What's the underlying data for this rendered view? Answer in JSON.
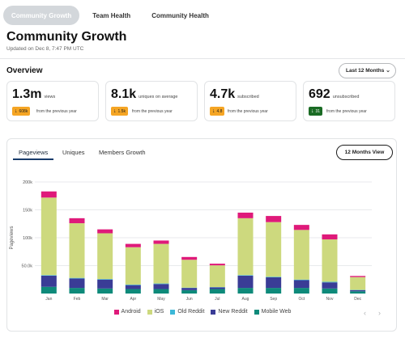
{
  "top_tabs": [
    {
      "label": "Community Growth",
      "active": true
    },
    {
      "label": "Team Health",
      "active": false
    },
    {
      "label": "Community Health",
      "active": false
    }
  ],
  "header": {
    "title": "Community Growth",
    "subtitle": "Updated on Dec 8, 7:47 PM UTC"
  },
  "overview": {
    "title": "Overview",
    "range_label": "Last 12 Months",
    "range_icon": "chevron-down-icon"
  },
  "stats": [
    {
      "value": "1.3m",
      "unit": "views",
      "delta": "608k",
      "direction": "down",
      "badge_color": "#f5a524",
      "compare": "from the previous year"
    },
    {
      "value": "8.1k",
      "unit": "uniques on average",
      "delta": "1.5k",
      "direction": "down",
      "badge_color": "#f5a524",
      "compare": "from the previous year"
    },
    {
      "value": "4.7k",
      "unit": "subscribed",
      "delta": "4.8",
      "direction": "down",
      "badge_color": "#f5a524",
      "compare": "from the previous year"
    },
    {
      "value": "692",
      "unit": "unsubscribed",
      "delta": "31",
      "direction": "down",
      "badge_color": "#1a6b24",
      "compare": "from the previous year"
    }
  ],
  "chart_tabs": [
    {
      "label": "Pageviews",
      "active": true
    },
    {
      "label": "Uniques",
      "active": false
    },
    {
      "label": "Members Growth",
      "active": false
    }
  ],
  "view_button": "12 Months View",
  "chart_data": {
    "type": "bar",
    "stacked": true,
    "ylabel": "Pageviews",
    "xlabel": "",
    "ylim": [
      0,
      200000
    ],
    "yticks": [
      50000,
      100000,
      150000,
      200000
    ],
    "ytick_labels": [
      "50.0k",
      "100k",
      "150k",
      "200k"
    ],
    "grid": true,
    "legend_position": "bottom",
    "categories": [
      "Jan",
      "Feb",
      "Mar",
      "Apr",
      "May",
      "Jun",
      "Jul",
      "Aug",
      "Sep",
      "Oct",
      "Nov",
      "Dec"
    ],
    "series": [
      {
        "name": "Mobile Web",
        "color": "#0e8a7a",
        "values": [
          12000,
          10000,
          9000,
          8000,
          8000,
          6000,
          8000,
          10000,
          10000,
          10000,
          9000,
          4000
        ]
      },
      {
        "name": "New Reddit",
        "color": "#3a3c96",
        "values": [
          20000,
          17000,
          16000,
          7000,
          9000,
          4000,
          3000,
          22000,
          19000,
          14000,
          11000,
          2000
        ]
      },
      {
        "name": "Old Reddit",
        "color": "#3cb8d8",
        "values": [
          1000,
          1000,
          1000,
          1000,
          1000,
          500,
          500,
          1000,
          1000,
          1000,
          1000,
          500
        ]
      },
      {
        "name": "iOS",
        "color": "#cdd97e",
        "values": [
          139000,
          98000,
          82000,
          67000,
          71000,
          50000,
          39000,
          102000,
          98000,
          89000,
          76000,
          23000
        ]
      },
      {
        "name": "Android",
        "color": "#df1a7a",
        "values": [
          11000,
          9000,
          7000,
          6000,
          6000,
          5000,
          3000,
          10000,
          11000,
          9000,
          9000,
          2000
        ]
      }
    ],
    "legend_order": [
      "Android",
      "iOS",
      "Old Reddit",
      "New Reddit",
      "Mobile Web"
    ]
  },
  "pager": {
    "prev": "‹",
    "next": "›"
  }
}
